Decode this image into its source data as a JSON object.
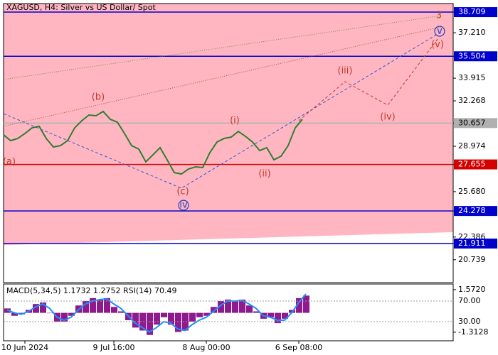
{
  "chart_data": [
    {
      "type": "line",
      "title": "XAGUSD, H4:  Silver vs US Dollar/ Spot",
      "x": [
        0,
        1,
        2,
        3,
        4,
        5,
        6,
        7,
        8,
        9,
        10,
        11,
        12,
        13,
        14,
        15,
        16,
        17,
        18,
        19,
        20,
        21,
        22,
        23,
        24,
        25,
        26,
        27,
        28,
        29,
        30,
        31,
        32,
        33,
        34,
        35,
        36,
        37,
        38,
        39,
        40,
        41,
        42
      ],
      "series": [
        {
          "color": "#2f7d32",
          "values": [
            29.8,
            29.38,
            29.54,
            29.9,
            30.31,
            30.42,
            29.54,
            28.92,
            29.02,
            29.38,
            30.31,
            30.83,
            31.24,
            31.19,
            31.5,
            30.93,
            30.72,
            29.9,
            29.02,
            28.77,
            27.84,
            28.35,
            28.87,
            27.99,
            27.06,
            26.96,
            27.32,
            27.48,
            27.43,
            28.51,
            29.28,
            29.54,
            29.64,
            30.05,
            29.69,
            29.28,
            28.66,
            28.87,
            27.99,
            28.25,
            29.02,
            30.31,
            30.93
          ]
        }
      ],
      "xlim": [
        0,
        63.2
      ],
      "ylim": [
        19.08,
        39.33
      ],
      "xticks": [
        {
          "value": 3,
          "label": "10 Jun 2024"
        },
        {
          "value": 15.5,
          "label": "9 Jul 16:00"
        },
        {
          "value": 28.5,
          "label": "8 Aug 00:00"
        },
        {
          "value": 41.5,
          "label": "6 Sep 08:00"
        }
      ],
      "yticks": [
        38.709,
        {
          "value": 37.21,
          "label": "37.210"
        },
        35.504,
        33.915,
        32.268,
        30.657,
        28.974,
        27.655,
        {
          "value": 25.68,
          "label": "25.680"
        },
        24.278,
        22.386,
        21.911,
        20.739
      ],
      "hlines": [
        {
          "value": 38.709,
          "color": "#0000cc"
        },
        {
          "value": 35.504,
          "color": "#0000cc"
        },
        {
          "value": 30.657,
          "color": "#b0b0b0"
        },
        {
          "value": 27.655,
          "color": "#d40000"
        },
        {
          "value": 24.278,
          "color": "#0000cc"
        },
        {
          "value": 21.911,
          "color": "#0000cc"
        }
      ],
      "trendlines": [
        {
          "color": "#2a5bd7",
          "dash": "dashed",
          "x": [
            0,
            25,
            61.5
          ],
          "y": [
            31.34,
            25.93,
            37.27
          ]
        },
        {
          "color": "#c0392b",
          "dash": "dashed",
          "x": [
            41.5,
            48,
            54,
            61
          ],
          "y": [
            30.83,
            33.66,
            31.96,
            36.75
          ]
        },
        {
          "color": "#6e8b3d",
          "dash": "dotted",
          "x": [
            0,
            61.5
          ],
          "y": [
            33.82,
            38.45
          ]
        },
        {
          "color": "#a0522d",
          "dash": "dotted",
          "x": [
            0,
            61.5
          ],
          "y": [
            30.42,
            37.63
          ]
        }
      ],
      "annotations": [
        {
          "text": "(a)",
          "x": 0.8,
          "y": 27.84,
          "color": "#c0392b"
        },
        {
          "text": "(b)",
          "x": 13.3,
          "y": 32.53,
          "color": "#c0392b"
        },
        {
          "text": "(c)",
          "x": 25.2,
          "y": 25.67,
          "color": "#c0392b"
        },
        {
          "text": "iv",
          "x": 25.3,
          "y": 24.69,
          "color": "#2a3fbf",
          "circled": true
        },
        {
          "text": "(i)",
          "x": 32.5,
          "y": 30.83,
          "color": "#c0392b"
        },
        {
          "text": "(ii)",
          "x": 36.7,
          "y": 26.96,
          "color": "#c0392b"
        },
        {
          "text": "(iii)",
          "x": 48,
          "y": 34.43,
          "color": "#c0392b"
        },
        {
          "text": "(iv)",
          "x": 54,
          "y": 31.08,
          "color": "#c0392b"
        },
        {
          "text": "(v)",
          "x": 61,
          "y": 36.34,
          "color": "#c0392b"
        },
        {
          "text": "v",
          "x": 61.3,
          "y": 37.32,
          "color": "#2a3fbf",
          "circled": true
        },
        {
          "text": "3",
          "x": 61.2,
          "y": 38.45,
          "color": "#a0522d"
        }
      ]
    },
    {
      "type": "bar",
      "title": "MACD(5,34,5) 1.1732 1.2752 RSI(14) 70.49",
      "xlim": [
        0,
        63.2
      ],
      "ylim": [
        -1.898,
        1.957
      ],
      "y2lim": [
        -7.2,
        103.1
      ],
      "yticks": [
        {
          "value": 1.572,
          "label": "1.5720"
        },
        -1.3128
      ],
      "y2ticks": [
        {
          "value": 70,
          "label": "70.00"
        },
        {
          "value": 30,
          "label": "30.00"
        }
      ],
      "series": [
        {
          "color": "#8e1a8e",
          "values": [
            0.3,
            -0.2,
            -0.1,
            0.2,
            0.6,
            0.7,
            0.0,
            -0.6,
            -0.6,
            -0.2,
            0.5,
            0.8,
            1.0,
            0.9,
            1.0,
            0.4,
            0.1,
            -0.5,
            -1.0,
            -1.2,
            -1.5,
            -0.8,
            -0.3,
            -0.8,
            -1.3,
            -1.2,
            -0.6,
            -0.3,
            -0.2,
            0.4,
            0.8,
            0.9,
            0.8,
            0.9,
            0.5,
            0.1,
            -0.4,
            -0.3,
            -0.7,
            -0.4,
            0.2,
            1.0,
            1.17
          ]
        },
        {
          "type": "line",
          "color": "#1e90ff",
          "values": [
            0.2,
            0.0,
            -0.1,
            0.1,
            0.4,
            0.6,
            0.3,
            -0.3,
            -0.5,
            -0.3,
            0.2,
            0.6,
            0.8,
            0.9,
            0.95,
            0.6,
            0.3,
            -0.2,
            -0.7,
            -1.0,
            -1.3,
            -1.0,
            -0.6,
            -0.7,
            -1.1,
            -1.2,
            -0.8,
            -0.5,
            -0.3,
            0.1,
            0.5,
            0.8,
            0.8,
            0.85,
            0.6,
            0.3,
            -0.2,
            -0.3,
            -0.5,
            -0.5,
            0.0,
            0.7,
            1.28
          ]
        }
      ]
    }
  ]
}
